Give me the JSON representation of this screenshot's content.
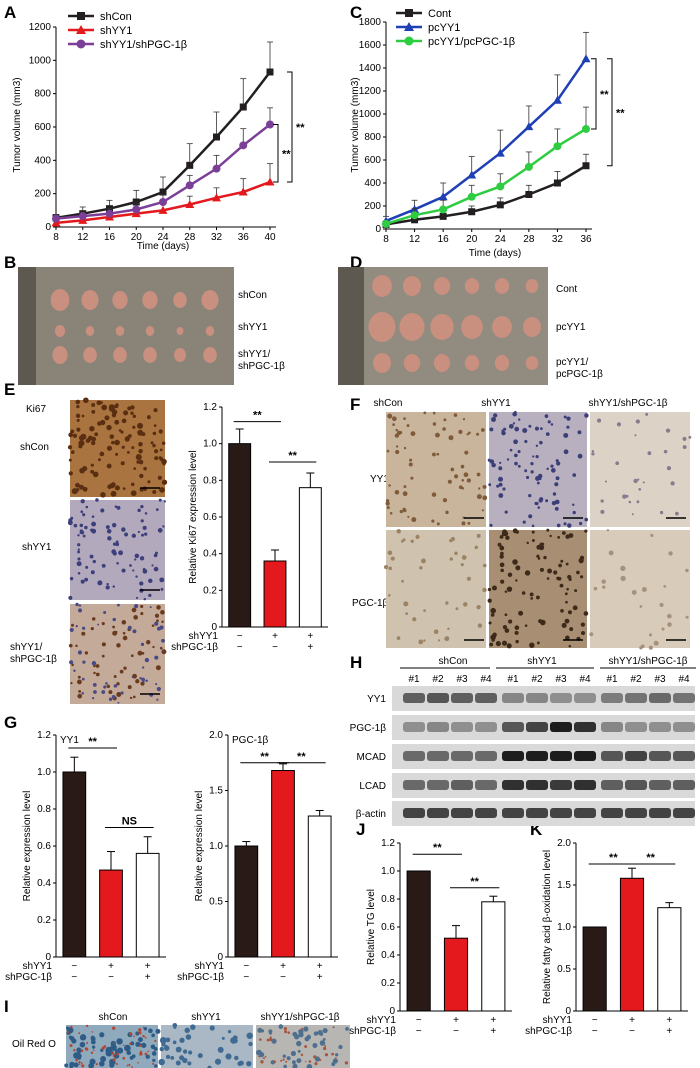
{
  "panel_labels": {
    "A": "A",
    "B": "B",
    "C": "C",
    "D": "D",
    "E": "E",
    "F": "F",
    "G": "G",
    "H": "H",
    "I": "I",
    "J": "J",
    "K": "K"
  },
  "colors": {
    "black": "#231f20",
    "red": "#e3191d",
    "purple": "#7b3f98",
    "blue": "#1f3fb5",
    "green": "#2ecc40",
    "darkbrown": "#2a1a17",
    "white": "#ffffff",
    "tissue": "#c98f7f",
    "ruler": "#6b665b"
  },
  "charts": {
    "A": {
      "type": "line",
      "xlabel": "Time (days)",
      "ylabel": "Tumor volume (mm3)",
      "x": [
        8,
        12,
        16,
        20,
        24,
        28,
        32,
        36,
        40
      ],
      "ylim": [
        0,
        1200
      ],
      "yticks": [
        0,
        200,
        400,
        600,
        800,
        1000,
        1200
      ],
      "series": [
        {
          "name": "shCon",
          "color": "#231f20",
          "marker": "square",
          "values": [
            55,
            80,
            110,
            150,
            210,
            370,
            540,
            720,
            930
          ],
          "err": [
            20,
            40,
            50,
            70,
            90,
            130,
            150,
            170,
            180
          ]
        },
        {
          "name": "shYY1",
          "color": "#e3191d",
          "marker": "triangle",
          "values": [
            25,
            40,
            60,
            80,
            100,
            135,
            175,
            210,
            270
          ],
          "err": [
            10,
            20,
            25,
            30,
            40,
            50,
            60,
            80,
            110
          ]
        },
        {
          "name": "shYY1/shPGC-1β",
          "color": "#7b3f98",
          "marker": "circle",
          "values": [
            50,
            65,
            80,
            105,
            150,
            250,
            350,
            490,
            615
          ],
          "err": [
            15,
            25,
            30,
            35,
            45,
            60,
            80,
            100,
            100
          ]
        }
      ],
      "sig": [
        "**",
        "**"
      ]
    },
    "C": {
      "type": "line",
      "xlabel": "Time (days)",
      "ylabel": "Tumor volume (mm3)",
      "x": [
        8,
        12,
        16,
        20,
        24,
        28,
        32,
        36
      ],
      "ylim": [
        0,
        1800
      ],
      "yticks": [
        0,
        200,
        400,
        600,
        800,
        1000,
        1200,
        1400,
        1600,
        1800
      ],
      "series": [
        {
          "name": "Cont",
          "color": "#231f20",
          "marker": "square",
          "values": [
            40,
            80,
            110,
            150,
            210,
            300,
            400,
            550
          ],
          "err": [
            20,
            40,
            40,
            50,
            60,
            80,
            100,
            100
          ]
        },
        {
          "name": "pcYY1",
          "color": "#1f3fb5",
          "marker": "triangle",
          "values": [
            70,
            170,
            280,
            470,
            660,
            890,
            1120,
            1480
          ],
          "err": [
            40,
            80,
            120,
            160,
            200,
            180,
            220,
            230
          ]
        },
        {
          "name": "pcYY1/pcPGC-1β",
          "color": "#2ecc40",
          "marker": "circle",
          "values": [
            45,
            120,
            170,
            280,
            370,
            540,
            720,
            870
          ],
          "err": [
            25,
            60,
            80,
            100,
            110,
            130,
            150,
            190
          ]
        }
      ],
      "sig": [
        "**",
        "**"
      ]
    },
    "E": {
      "type": "bar",
      "title": "",
      "ylabel": "Relative Ki67 expression level",
      "ylim": [
        0,
        1.2
      ],
      "yticks": [
        "0",
        "0.2",
        "0.4",
        "0.6",
        "0.8",
        "1.0",
        "1.2"
      ],
      "values": [
        1.0,
        0.36,
        0.76
      ],
      "err": [
        0.08,
        0.06,
        0.08
      ],
      "colors": [
        "#2a1a17",
        "#e3191d",
        "#ffffff"
      ],
      "sig": [
        "**",
        "**"
      ]
    },
    "G1": {
      "type": "bar",
      "title": "YY1",
      "ylabel": "Relative expression level",
      "ylim": [
        0,
        1.2
      ],
      "yticks": [
        "0",
        "0.2",
        "0.4",
        "0.6",
        "0.8",
        "1.0",
        "1.2"
      ],
      "values": [
        1.0,
        0.47,
        0.56
      ],
      "err": [
        0.08,
        0.1,
        0.09
      ],
      "colors": [
        "#2a1a17",
        "#e3191d",
        "#ffffff"
      ],
      "sig": [
        "**",
        "NS"
      ]
    },
    "G2": {
      "type": "bar",
      "title": "PGC-1β",
      "ylabel": "Relative expression level",
      "ylim": [
        0,
        2.0
      ],
      "yticks": [
        "0",
        "0.5",
        "1.0",
        "1.5",
        "2.0"
      ],
      "values": [
        1.0,
        1.68,
        1.27
      ],
      "err": [
        0.04,
        0.06,
        0.05
      ],
      "colors": [
        "#2a1a17",
        "#e3191d",
        "#ffffff"
      ],
      "sig": [
        "**",
        "**"
      ]
    },
    "J": {
      "type": "bar",
      "title": "",
      "ylabel": "Relative TG level",
      "ylim": [
        0,
        1.2
      ],
      "yticks": [
        "0",
        "0.2",
        "0.4",
        "0.6",
        "0.8",
        "1.0",
        "1.2"
      ],
      "values": [
        1.0,
        0.52,
        0.78
      ],
      "err": [
        0.0,
        0.09,
        0.04
      ],
      "colors": [
        "#2a1a17",
        "#e3191d",
        "#ffffff"
      ],
      "sig": [
        "**",
        "**"
      ]
    },
    "K": {
      "type": "bar",
      "title": "",
      "ylabel": "Relative fatty acid β-oxidation level",
      "ylim": [
        0,
        2.0
      ],
      "yticks": [
        "0",
        "0.5",
        "1.0",
        "1.5",
        "2.0"
      ],
      "values": [
        1.0,
        1.58,
        1.23
      ],
      "err": [
        0.0,
        0.12,
        0.06
      ],
      "colors": [
        "#2a1a17",
        "#e3191d",
        "#ffffff"
      ],
      "sig": [
        "**",
        "**"
      ]
    }
  },
  "treat": {
    "row1": "shYY1",
    "row2": "shPGC-1β",
    "s1": [
      "−",
      "+",
      "+"
    ],
    "s2": [
      "−",
      "−",
      "+"
    ]
  },
  "B": {
    "labels": [
      "shCon",
      "shYY1",
      "shYY1/",
      "shPGC-1β"
    ]
  },
  "D": {
    "labels": [
      "Cont",
      "pcYY1",
      "pcYY1/",
      "pcPGC-1β"
    ]
  },
  "Eimg": {
    "title": "Ki67",
    "rows": [
      "shCon",
      "shYY1",
      "shYY1/",
      "shPGC-1β"
    ]
  },
  "F": {
    "cols": [
      "shCon",
      "shYY1",
      "shYY1/shPGC-1β"
    ],
    "rows": [
      "YY1",
      "PGC-1β"
    ]
  },
  "H": {
    "groups": [
      "shCon",
      "shYY1",
      "shYY1/shPGC-1β"
    ],
    "lanes": [
      "#1",
      "#2",
      "#3",
      "#4"
    ],
    "rows": [
      "YY1",
      "PGC-1β",
      "MCAD",
      "LCAD",
      "β-actin"
    ]
  },
  "I": {
    "cols": [
      "shCon",
      "shYY1",
      "shYY1/shPGC-1β"
    ],
    "row": "Oil Red O"
  }
}
